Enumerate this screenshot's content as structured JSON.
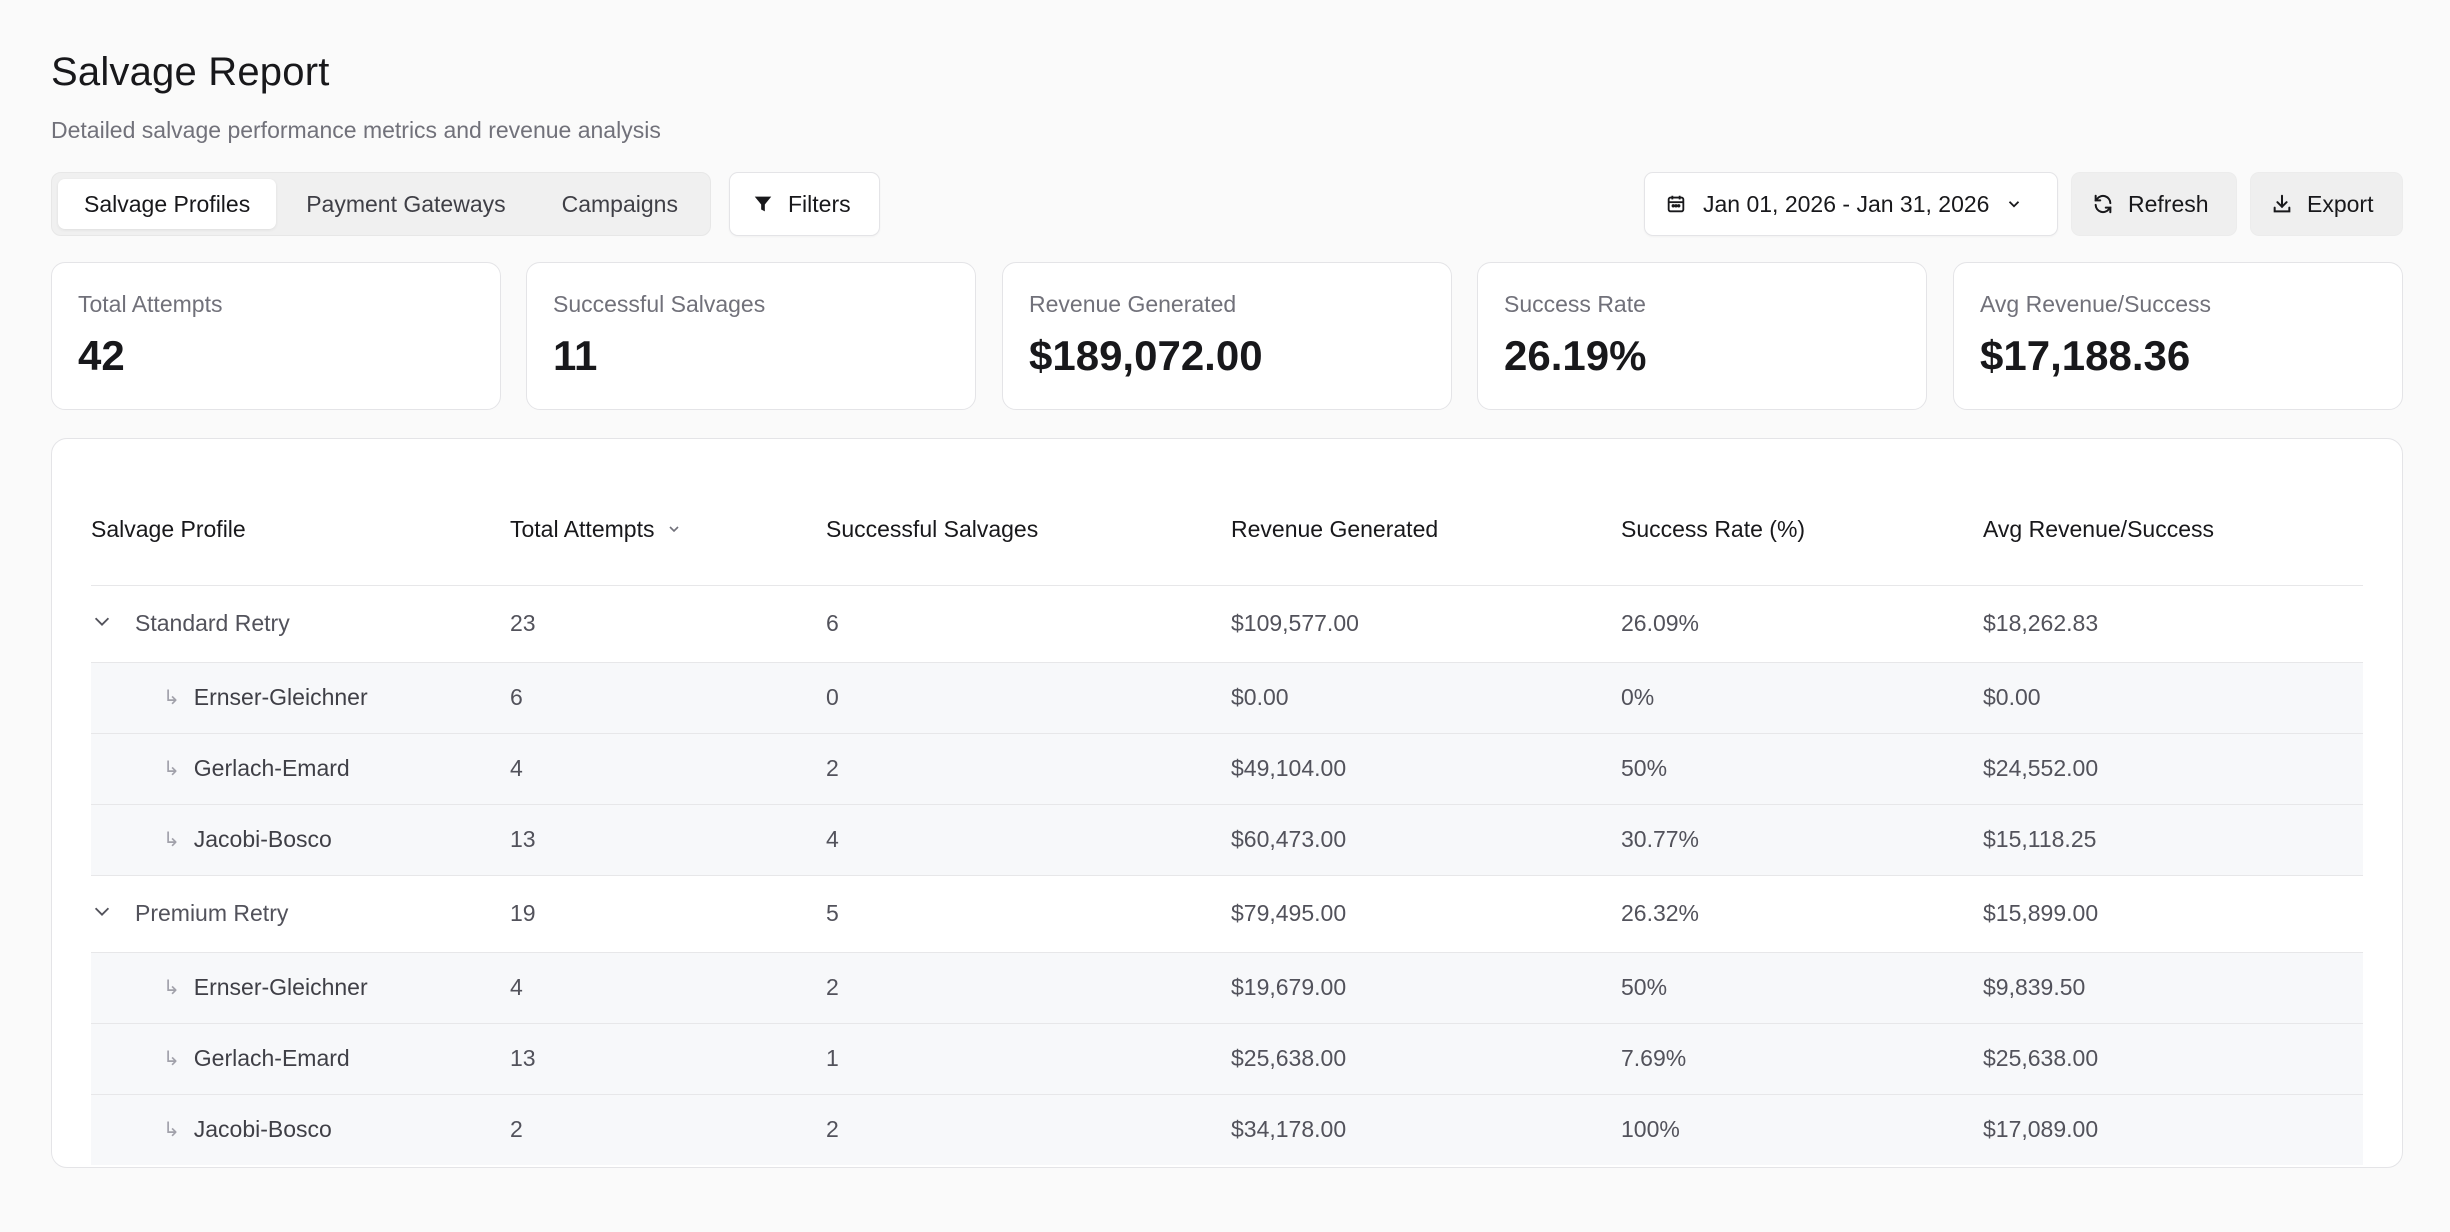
{
  "header": {
    "title": "Salvage Report",
    "subtitle": "Detailed salvage performance metrics and revenue analysis"
  },
  "toolbar": {
    "tabs": [
      {
        "label": "Salvage Profiles",
        "active": true
      },
      {
        "label": "Payment Gateways",
        "active": false
      },
      {
        "label": "Campaigns",
        "active": false
      }
    ],
    "filters_label": "Filters",
    "date_range": "Jan 01, 2026 - Jan 31, 2026",
    "refresh_label": "Refresh",
    "export_label": "Export"
  },
  "stats": [
    {
      "label": "Total Attempts",
      "value": "42"
    },
    {
      "label": "Successful Salvages",
      "value": "11"
    },
    {
      "label": "Revenue Generated",
      "value": "$189,072.00"
    },
    {
      "label": "Success Rate",
      "value": "26.19%"
    },
    {
      "label": "Avg Revenue/Success",
      "value": "$17,188.36"
    }
  ],
  "table": {
    "columns": [
      "Salvage Profile",
      "Total Attempts",
      "Successful Salvages",
      "Revenue Generated",
      "Success Rate (%)",
      "Avg Revenue/Success"
    ],
    "groups": [
      {
        "name": "Standard Retry",
        "attempts": "23",
        "successes": "6",
        "revenue": "$109,577.00",
        "rate": "26.09%",
        "avg": "$18,262.83",
        "children": [
          {
            "name": "Ernser-Gleichner",
            "attempts": "6",
            "successes": "0",
            "revenue": "$0.00",
            "rate": "0%",
            "avg": "$0.00"
          },
          {
            "name": "Gerlach-Emard",
            "attempts": "4",
            "successes": "2",
            "revenue": "$49,104.00",
            "rate": "50%",
            "avg": "$24,552.00"
          },
          {
            "name": "Jacobi-Bosco",
            "attempts": "13",
            "successes": "4",
            "revenue": "$60,473.00",
            "rate": "30.77%",
            "avg": "$15,118.25"
          }
        ]
      },
      {
        "name": "Premium Retry",
        "attempts": "19",
        "successes": "5",
        "revenue": "$79,495.00",
        "rate": "26.32%",
        "avg": "$15,899.00",
        "children": [
          {
            "name": "Ernser-Gleichner",
            "attempts": "4",
            "successes": "2",
            "revenue": "$19,679.00",
            "rate": "50%",
            "avg": "$9,839.50"
          },
          {
            "name": "Gerlach-Emard",
            "attempts": "13",
            "successes": "1",
            "revenue": "$25,638.00",
            "rate": "7.69%",
            "avg": "$25,638.00"
          },
          {
            "name": "Jacobi-Bosco",
            "attempts": "2",
            "successes": "2",
            "revenue": "$34,178.00",
            "rate": "100%",
            "avg": "$17,089.00"
          }
        ]
      }
    ]
  },
  "icons": {
    "filters": "filter-icon",
    "date": "calendar-icon",
    "date_dropdown": "chevron-down-icon",
    "refresh": "refresh-icon",
    "export": "download-icon",
    "sort": "chevron-down-icon",
    "expand": "chevron-down-icon",
    "child": "corner-down-right-icon"
  },
  "colors": {
    "background": "#fafafa",
    "card": "#ffffff",
    "border": "#e4e4e7",
    "muted_text": "#71717a",
    "child_row": "#f7f8fa"
  }
}
